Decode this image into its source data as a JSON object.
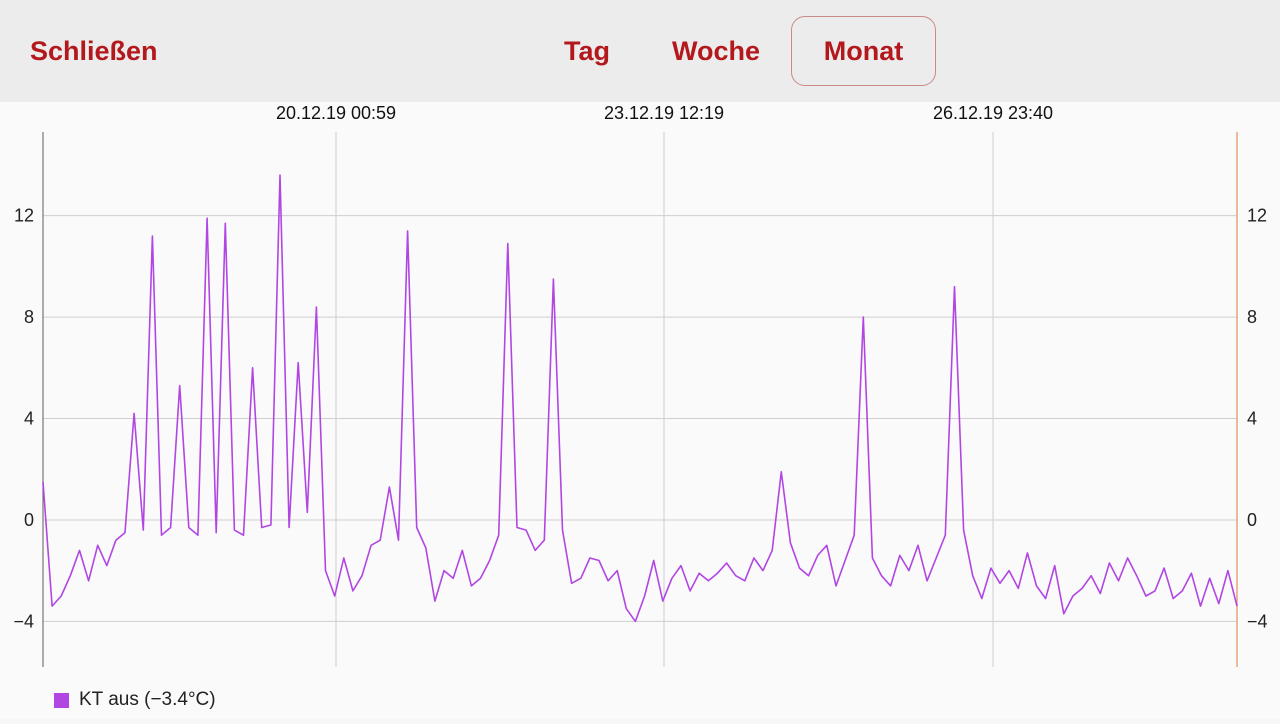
{
  "toolbar": {
    "close_label": "Schließen",
    "tabs": [
      {
        "label": "Tag",
        "selected": false
      },
      {
        "label": "Woche",
        "selected": false
      },
      {
        "label": "Monat",
        "selected": true
      }
    ],
    "accent_color": "#b3181c"
  },
  "chart_data": {
    "type": "line",
    "x_tick_labels": [
      "20.12.19 00:59",
      "23.12.19 12:19",
      "26.12.19 23:40"
    ],
    "y_ticks": [
      12,
      8,
      4,
      0,
      -4
    ],
    "ylim": [
      -5.8,
      15.3
    ],
    "grid": true,
    "legend_position": "bottom-left",
    "series": [
      {
        "name": "KT aus (−3.4°C)",
        "color": "#b146e3",
        "values": [
          1.5,
          -3.4,
          -3.0,
          -2.2,
          -1.2,
          -2.4,
          -1.0,
          -1.8,
          -0.8,
          -0.5,
          4.2,
          -0.4,
          11.2,
          -0.6,
          -0.3,
          5.3,
          -0.3,
          -0.6,
          11.9,
          -0.5,
          11.7,
          -0.4,
          -0.6,
          6.0,
          -0.3,
          -0.2,
          13.6,
          -0.3,
          6.2,
          0.3,
          8.4,
          -2.0,
          -3.0,
          -1.5,
          -2.8,
          -2.2,
          -1.0,
          -0.8,
          1.3,
          -0.8,
          11.4,
          -0.3,
          -1.1,
          -3.2,
          -2.0,
          -2.3,
          -1.2,
          -2.6,
          -2.3,
          -1.6,
          -0.6,
          10.9,
          -0.3,
          -0.4,
          -1.2,
          -0.8,
          9.5,
          -0.4,
          -2.5,
          -2.3,
          -1.5,
          -1.6,
          -2.4,
          -2.0,
          -3.5,
          -4.0,
          -3.0,
          -1.6,
          -3.2,
          -2.3,
          -1.8,
          -2.8,
          -2.1,
          -2.4,
          -2.1,
          -1.7,
          -2.2,
          -2.4,
          -1.5,
          -2.0,
          -1.2,
          1.9,
          -0.9,
          -1.9,
          -2.2,
          -1.4,
          -1.0,
          -2.6,
          -1.6,
          -0.6,
          8.0,
          -1.5,
          -2.2,
          -2.6,
          -1.4,
          -2.0,
          -1.0,
          -2.4,
          -1.5,
          -0.6,
          9.2,
          -0.4,
          -2.2,
          -3.1,
          -1.9,
          -2.5,
          -2.0,
          -2.7,
          -1.3,
          -2.6,
          -3.1,
          -1.8,
          -3.7,
          -3.0,
          -2.7,
          -2.2,
          -2.9,
          -1.7,
          -2.4,
          -1.5,
          -2.2,
          -3.0,
          -2.8,
          -1.9,
          -3.1,
          -2.8,
          -2.1,
          -3.4,
          -2.3,
          -3.3,
          -2.0,
          -3.4
        ]
      }
    ]
  }
}
